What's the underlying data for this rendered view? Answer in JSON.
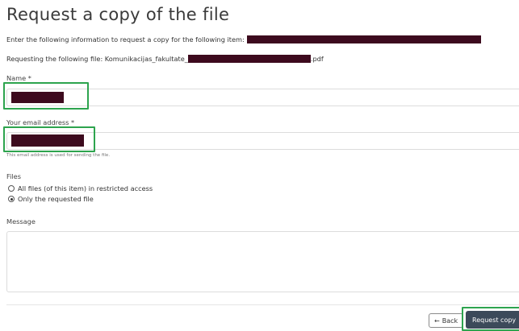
{
  "page": {
    "title": "Request a copy of the file"
  },
  "info": {
    "intro_text": "Enter the following information to request a copy for the following item:",
    "file_prefix": "Requesting the following file: Komunikacijas_fakultate_",
    "file_suffix": ".pdf"
  },
  "form": {
    "name_label": "Name *",
    "email_label": "Your email address *",
    "email_help": "This email address is used for sending the file.",
    "files_label": "Files",
    "files_options": [
      {
        "label": "All files (of this item) in restricted access",
        "selected": false
      },
      {
        "label": "Only the requested file",
        "selected": true
      }
    ],
    "message_label": "Message"
  },
  "actions": {
    "back_label": "Back",
    "back_icon": "arrow-left-icon",
    "submit_label": "Request copy"
  },
  "colors": {
    "redaction": "#3d0a1e",
    "highlight": "#2da44e",
    "submit_bg": "#3c4a5a"
  }
}
